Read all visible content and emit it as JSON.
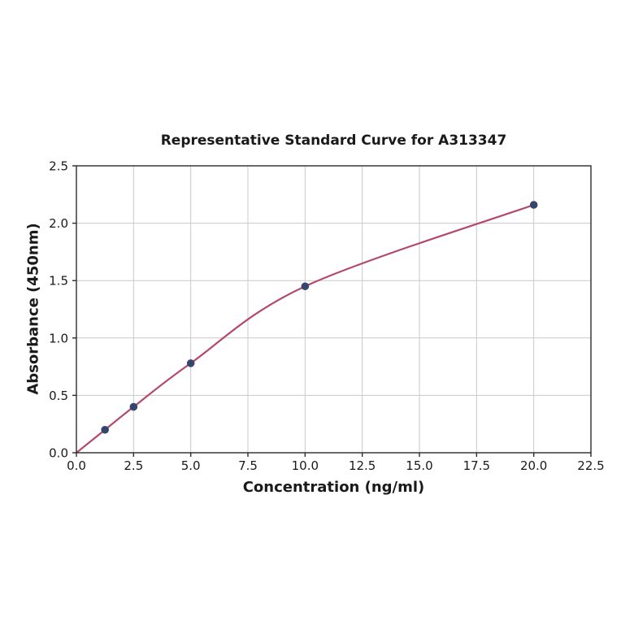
{
  "chart_data": {
    "type": "scatter",
    "fit_curve": true,
    "title": "Representative Standard Curve for A313347",
    "xlabel": "Concentration (ng/ml)",
    "ylabel": "Absorbance (450nm)",
    "x": [
      1.25,
      2.5,
      5.0,
      10.0,
      20.0
    ],
    "y": [
      0.2,
      0.4,
      0.78,
      1.45,
      2.16
    ],
    "curve_start": [
      0,
      0
    ],
    "xlim": [
      0,
      22.5
    ],
    "ylim": [
      0,
      2.5
    ],
    "x_ticks": [
      0.0,
      2.5,
      5.0,
      7.5,
      10.0,
      12.5,
      15.0,
      17.5,
      20.0,
      22.5
    ],
    "y_ticks": [
      0.0,
      0.5,
      1.0,
      1.5,
      2.0,
      2.5
    ],
    "x_tick_labels": [
      "0.0",
      "2.5",
      "5.0",
      "7.5",
      "10.0",
      "12.5",
      "15.0",
      "17.5",
      "20.0",
      "22.5"
    ],
    "y_tick_labels": [
      "0.0",
      "0.5",
      "1.0",
      "1.5",
      "2.0",
      "2.5"
    ],
    "grid": true,
    "legend": "none",
    "colors": {
      "curve": "#b34a6b",
      "point": "#35456d",
      "grid": "#c9c9c9",
      "spine": "#2b2b2b",
      "tick": "#2b2b2b",
      "text": "#1a1a1a",
      "background": "#ffffff"
    }
  }
}
